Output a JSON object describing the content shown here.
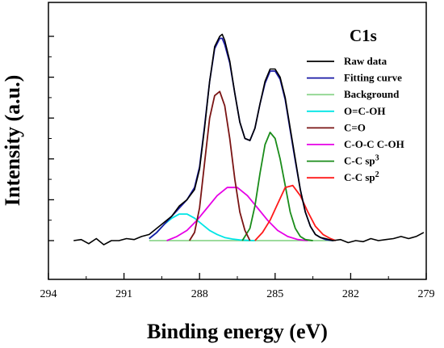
{
  "chart_data": {
    "type": "line",
    "title": "",
    "panel_label": "C1s",
    "xlabel": "Binding energy (eV)",
    "ylabel": "Intensity (a.u.)",
    "x_reversed": true,
    "xlim": [
      294,
      279
    ],
    "ylim": [
      -0.15,
      1.05
    ],
    "x_ticks": [
      294,
      291,
      288,
      285,
      282,
      279
    ],
    "y_ticks_labeled": false,
    "grid": false,
    "legend_position": "right",
    "series": [
      {
        "name": "Raw data",
        "color": "#000000",
        "x": [
          293.0,
          292.7,
          292.4,
          292.1,
          291.8,
          291.5,
          291.2,
          290.9,
          290.6,
          290.3,
          290.0,
          289.7,
          289.4,
          289.1,
          288.8,
          288.5,
          288.2,
          288.0,
          287.8,
          287.6,
          287.4,
          287.2,
          287.1,
          287.0,
          286.8,
          286.6,
          286.4,
          286.2,
          286.0,
          285.8,
          285.6,
          285.4,
          285.2,
          285.0,
          284.8,
          284.6,
          284.4,
          284.2,
          284.0,
          283.8,
          283.6,
          283.4,
          283.2,
          283.0,
          282.7,
          282.4,
          282.1,
          281.8,
          281.5,
          281.2,
          280.9,
          280.6,
          280.3,
          280.0,
          279.7,
          279.4,
          279.1
        ],
        "y": [
          0.0,
          0.005,
          -0.015,
          0.01,
          -0.02,
          0.0,
          0.0,
          0.01,
          0.005,
          0.02,
          0.03,
          0.06,
          0.09,
          0.12,
          0.17,
          0.2,
          0.25,
          0.35,
          0.55,
          0.78,
          0.95,
          1.0,
          1.01,
          0.98,
          0.88,
          0.72,
          0.58,
          0.5,
          0.49,
          0.55,
          0.67,
          0.78,
          0.84,
          0.84,
          0.8,
          0.7,
          0.55,
          0.4,
          0.25,
          0.14,
          0.07,
          0.03,
          0.015,
          0.01,
          0.0,
          0.005,
          -0.01,
          0.0,
          -0.005,
          0.01,
          0.0,
          0.005,
          0.01,
          0.02,
          0.01,
          0.02,
          0.04
        ]
      },
      {
        "name": "Fitting curve",
        "color": "#1a1aa6",
        "x": [
          290.0,
          289.7,
          289.4,
          289.1,
          288.8,
          288.5,
          288.2,
          288.0,
          287.8,
          287.6,
          287.4,
          287.2,
          287.1,
          287.0,
          286.8,
          286.6,
          286.4,
          286.2,
          286.0,
          285.8,
          285.6,
          285.4,
          285.2,
          285.0,
          284.8,
          284.6,
          284.4,
          284.2,
          284.0,
          283.8,
          283.6,
          283.4,
          283.2,
          283.0,
          282.7
        ],
        "y": [
          0.01,
          0.04,
          0.08,
          0.12,
          0.16,
          0.2,
          0.26,
          0.36,
          0.56,
          0.78,
          0.94,
          0.99,
          0.99,
          0.96,
          0.87,
          0.72,
          0.58,
          0.5,
          0.49,
          0.55,
          0.67,
          0.77,
          0.83,
          0.83,
          0.79,
          0.69,
          0.54,
          0.39,
          0.25,
          0.14,
          0.07,
          0.03,
          0.015,
          0.005,
          0.0
        ]
      },
      {
        "name": "Background",
        "color": "#8fd68f",
        "x": [
          290.0,
          282.7
        ],
        "y": [
          0.0,
          0.0
        ]
      },
      {
        "name": "O=C-OH",
        "color": "#00e5e5",
        "x": [
          290.0,
          289.7,
          289.4,
          289.1,
          288.8,
          288.5,
          288.2,
          287.9,
          287.6,
          287.3,
          287.0,
          286.7,
          286.4,
          286.1,
          285.8
        ],
        "y": [
          0.01,
          0.04,
          0.08,
          0.11,
          0.13,
          0.13,
          0.11,
          0.08,
          0.05,
          0.03,
          0.015,
          0.008,
          0.003,
          0.001,
          0.0
        ]
      },
      {
        "name": "C=O",
        "color": "#7a1414",
        "x": [
          288.4,
          288.2,
          288.0,
          287.8,
          287.6,
          287.4,
          287.2,
          287.0,
          286.8,
          286.6,
          286.4,
          286.2,
          286.0
        ],
        "y": [
          0.0,
          0.04,
          0.16,
          0.38,
          0.6,
          0.71,
          0.73,
          0.66,
          0.5,
          0.3,
          0.14,
          0.05,
          0.0
        ]
      },
      {
        "name": "C-O-C  C-OH",
        "color": "#e600e6",
        "x": [
          289.3,
          288.9,
          288.5,
          288.1,
          287.7,
          287.3,
          286.9,
          286.5,
          286.1,
          285.7,
          285.3,
          284.9,
          284.5,
          284.1,
          283.7
        ],
        "y": [
          0.0,
          0.02,
          0.05,
          0.1,
          0.16,
          0.22,
          0.26,
          0.26,
          0.22,
          0.16,
          0.1,
          0.05,
          0.02,
          0.005,
          0.0
        ]
      },
      {
        "name": "C-C sp3",
        "color": "#1a8c1a",
        "x": [
          286.3,
          286.0,
          285.8,
          285.6,
          285.4,
          285.2,
          285.0,
          284.8,
          284.6,
          284.4,
          284.2,
          284.0,
          283.8,
          283.5
        ],
        "y": [
          0.0,
          0.06,
          0.17,
          0.33,
          0.47,
          0.53,
          0.5,
          0.4,
          0.27,
          0.14,
          0.06,
          0.02,
          0.005,
          0.0
        ]
      },
      {
        "name": "C-C sp2",
        "color": "#ff1a1a",
        "x": [
          285.8,
          285.5,
          285.2,
          284.9,
          284.6,
          284.3,
          284.0,
          283.7,
          283.4,
          283.1,
          282.8,
          282.6
        ],
        "y": [
          0.0,
          0.04,
          0.1,
          0.18,
          0.26,
          0.27,
          0.22,
          0.14,
          0.07,
          0.03,
          0.01,
          0.0
        ]
      }
    ]
  }
}
